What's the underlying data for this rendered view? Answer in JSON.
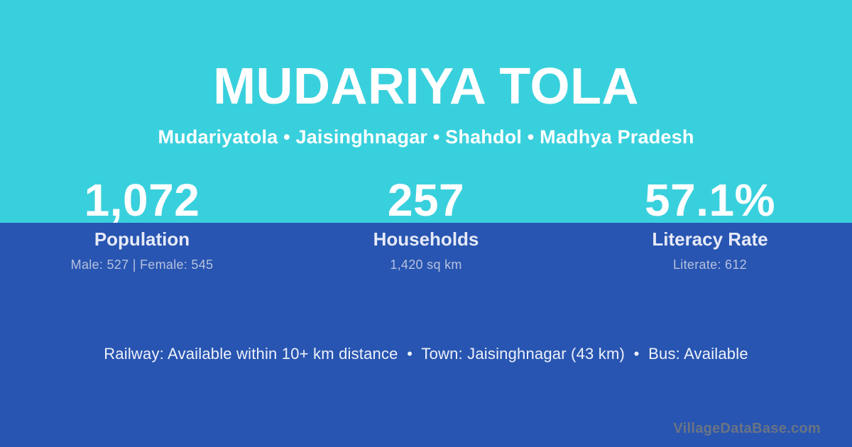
{
  "colors": {
    "top_bg": "#39d0dd",
    "bottom_bg": "#2855b1",
    "text_primary": "#ffffff",
    "text_label": "#e6eaf7",
    "text_muted": "#b6c1de",
    "watermark": "#6b7484"
  },
  "header": {
    "title": "MUDARIYA TOLA",
    "subtitle": "Mudariyatola • Jaisinghnagar • Shahdol • Madhya Pradesh"
  },
  "stats": [
    {
      "value": "1,072",
      "label": "Population",
      "detail": "Male: 527 | Female: 545"
    },
    {
      "value": "257",
      "label": "Households",
      "detail": "1,420 sq km"
    },
    {
      "value": "57.1%",
      "label": "Literacy Rate",
      "detail": "Literate: 612"
    }
  ],
  "footer": {
    "transport_info": "Railway: Available within 10+ km distance  •  Town: Jaisinghnagar (43 km)  •  Bus: Available",
    "watermark": "VillageDataBase.com"
  }
}
